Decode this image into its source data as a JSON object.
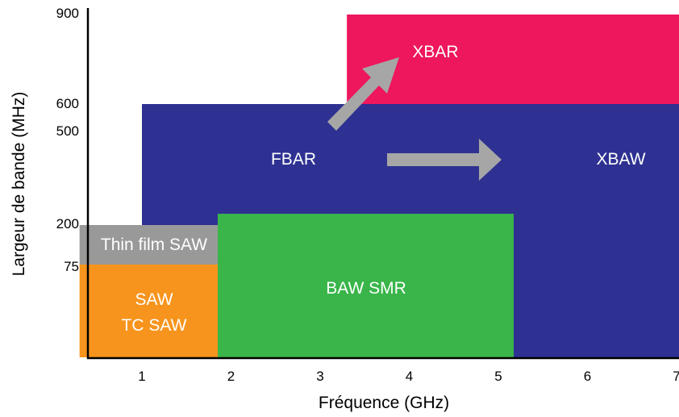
{
  "chart_data": {
    "type": "area",
    "xlabel": "Fréquence (GHz)",
    "ylabel": "Largeur de bande (MHz)",
    "x_ticks": [
      "1",
      "2",
      "3",
      "4",
      "5",
      "6",
      "7"
    ],
    "y_ticks": [
      "900",
      "600",
      "500",
      "200",
      "75"
    ],
    "regions": [
      {
        "name": "XBAR",
        "label_lines": [
          "XBAR"
        ],
        "color": "#ee165c",
        "x_start": 3.3,
        "x_end": 7.1,
        "y_start": 600,
        "y_end": 885
      },
      {
        "name": "XBAW",
        "label_lines": [
          "XBAW"
        ],
        "color": "#2e3192",
        "x_start": 1.0,
        "x_end": 7.1,
        "y_start": 0,
        "y_end": 600
      },
      {
        "name": "FBAR",
        "label_lines": [
          "FBAR"
        ],
        "color": "#2e3192",
        "x_start": 1.0,
        "x_end": 7.1,
        "y_start": 0,
        "y_end": 600
      },
      {
        "name": "Thin film SAW",
        "label_lines": [
          "Thin film SAW"
        ],
        "color": "#999999",
        "x_start": 0.3,
        "x_end": 2.0,
        "y_start": 75,
        "y_end": 160
      },
      {
        "name": "SAW / TC SAW",
        "label_lines": [
          "SAW",
          "TC SAW"
        ],
        "color": "#f7941d",
        "x_start": 0.3,
        "x_end": 2.0,
        "y_start": 0,
        "y_end": 75
      },
      {
        "name": "BAW SMR",
        "label_lines": [
          "BAW SMR"
        ],
        "color": "#39b54a",
        "x_start": 2.0,
        "x_end": 5.25,
        "y_start": 0,
        "y_end": 175
      }
    ],
    "arrows": [
      {
        "from": "FBAR",
        "to": "XBAR",
        "color": "#a6a6a6"
      },
      {
        "from": "FBAR",
        "to": "XBAW",
        "color": "#a6a6a6"
      }
    ]
  }
}
